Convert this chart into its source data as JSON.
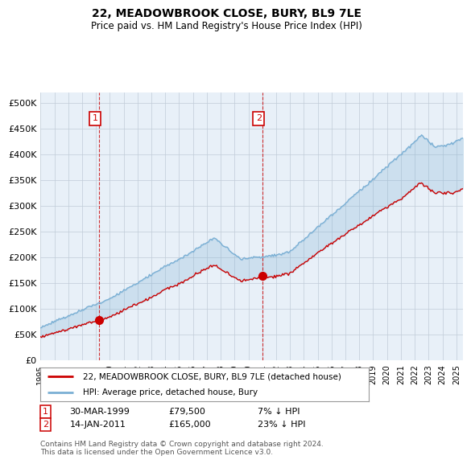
{
  "title": "22, MEADOWBROOK CLOSE, BURY, BL9 7LE",
  "subtitle": "Price paid vs. HM Land Registry's House Price Index (HPI)",
  "ylabel_ticks": [
    "£0",
    "£50K",
    "£100K",
    "£150K",
    "£200K",
    "£250K",
    "£300K",
    "£350K",
    "£400K",
    "£450K",
    "£500K"
  ],
  "ytick_values": [
    0,
    50000,
    100000,
    150000,
    200000,
    250000,
    300000,
    350000,
    400000,
    450000,
    500000
  ],
  "ylim": [
    0,
    520000
  ],
  "xlim_start": 1995.0,
  "xlim_end": 2025.5,
  "sale1_year": 1999.24,
  "sale1_price": 79500,
  "sale2_year": 2011.04,
  "sale2_price": 165000,
  "legend_house": "22, MEADOWBROOK CLOSE, BURY, BL9 7LE (detached house)",
  "legend_hpi": "HPI: Average price, detached house, Bury",
  "note1_label": "1",
  "note1_date": "30-MAR-1999",
  "note1_price": "£79,500",
  "note1_hpi": "7% ↓ HPI",
  "note2_label": "2",
  "note2_date": "14-JAN-2011",
  "note2_price": "£165,000",
  "note2_hpi": "23% ↓ HPI",
  "footer": "Contains HM Land Registry data © Crown copyright and database right 2024.\nThis data is licensed under the Open Government Licence v3.0.",
  "house_color": "#cc0000",
  "hpi_color": "#7aafd4",
  "hpi_fill_color": "#ddeeff",
  "vline_color": "#cc0000",
  "background_color": "#ffffff",
  "plot_bg_color": "#e8f0f8",
  "grid_color": "#c0ccd8"
}
